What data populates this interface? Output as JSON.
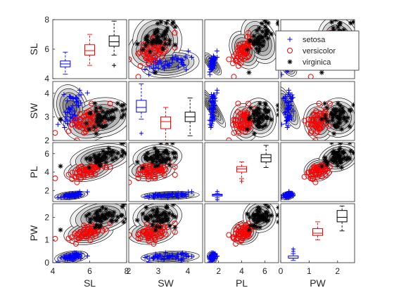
{
  "chart_data": {
    "type": "scatter-matrix",
    "variables": [
      "SL",
      "SW",
      "PL",
      "PW"
    ],
    "ranges": {
      "SL": [
        4,
        8
      ],
      "SW": [
        2,
        4.5
      ],
      "PL": [
        0.8,
        7.2
      ],
      "PW": [
        0,
        2.6
      ]
    },
    "ticks": {
      "SL": [
        4,
        6,
        8
      ],
      "SW": [
        2,
        3,
        4
      ],
      "PL": [
        2,
        4,
        6
      ],
      "PW": [
        0,
        1,
        2
      ]
    },
    "groups": [
      {
        "name": "setosa",
        "color": "#0000ff",
        "marker": "plus",
        "means": {
          "SL": 5.0,
          "SW": 3.4,
          "PL": 1.46,
          "PW": 0.25
        },
        "sds": {
          "SL": 0.35,
          "SW": 0.38,
          "PL": 0.17,
          "PW": 0.1
        }
      },
      {
        "name": "versicolor",
        "color": "#ff0000",
        "marker": "circle",
        "means": {
          "SL": 5.94,
          "SW": 2.77,
          "PL": 4.26,
          "PW": 1.33
        },
        "sds": {
          "SL": 0.52,
          "SW": 0.31,
          "PL": 0.47,
          "PW": 0.2
        }
      },
      {
        "name": "virginica",
        "color": "#000000",
        "marker": "asterisk",
        "means": {
          "SL": 6.59,
          "SW": 2.97,
          "PL": 5.55,
          "PW": 2.03
        },
        "sds": {
          "SL": 0.64,
          "SW": 0.32,
          "PL": 0.55,
          "PW": 0.27
        }
      }
    ],
    "boxplots": {
      "SL": [
        {
          "group": "setosa",
          "min": 4.3,
          "q1": 4.8,
          "median": 5.0,
          "q3": 5.2,
          "max": 5.8,
          "outliers": []
        },
        {
          "group": "versicolor",
          "min": 4.9,
          "q1": 5.6,
          "median": 5.9,
          "q3": 6.3,
          "max": 7.0,
          "outliers": []
        },
        {
          "group": "virginica",
          "min": 5.6,
          "q1": 6.2,
          "median": 6.5,
          "q3": 6.9,
          "max": 7.9,
          "outliers": [
            4.9
          ]
        }
      ],
      "SW": [
        {
          "group": "setosa",
          "min": 2.9,
          "q1": 3.2,
          "median": 3.4,
          "q3": 3.7,
          "max": 4.4,
          "outliers": [
            2.3
          ]
        },
        {
          "group": "versicolor",
          "min": 2.0,
          "q1": 2.5,
          "median": 2.8,
          "q3": 3.0,
          "max": 3.4,
          "outliers": []
        },
        {
          "group": "virginica",
          "min": 2.2,
          "q1": 2.8,
          "median": 3.0,
          "q3": 3.2,
          "max": 3.8,
          "outliers": []
        }
      ],
      "PL": [
        {
          "group": "setosa",
          "min": 1.2,
          "q1": 1.4,
          "median": 1.5,
          "q3": 1.6,
          "max": 1.7,
          "outliers": [
            1.0,
            1.9
          ]
        },
        {
          "group": "versicolor",
          "min": 3.3,
          "q1": 4.0,
          "median": 4.35,
          "q3": 4.6,
          "max": 5.1,
          "outliers": [
            3.0
          ]
        },
        {
          "group": "virginica",
          "min": 4.5,
          "q1": 5.1,
          "median": 5.55,
          "q3": 5.9,
          "max": 6.9,
          "outliers": []
        }
      ],
      "PW": [
        {
          "group": "setosa",
          "min": 0.1,
          "q1": 0.2,
          "median": 0.2,
          "q3": 0.3,
          "max": 0.4,
          "outliers": [
            0.5,
            0.6
          ]
        },
        {
          "group": "versicolor",
          "min": 1.0,
          "q1": 1.2,
          "median": 1.3,
          "q3": 1.5,
          "max": 1.8,
          "outliers": []
        },
        {
          "group": "virginica",
          "min": 1.4,
          "q1": 1.8,
          "median": 2.0,
          "q3": 2.3,
          "max": 2.5,
          "outliers": []
        }
      ]
    },
    "contours": {
      "fill_colors": [
        "#f0f0f0",
        "#d2d2d2",
        "#b4b4b4",
        "#969696",
        "#787878"
      ],
      "levels": 5
    },
    "legend": {
      "placement": "top-right",
      "entries": [
        "setosa",
        "versicolor",
        "virginica"
      ]
    },
    "grid": false
  }
}
